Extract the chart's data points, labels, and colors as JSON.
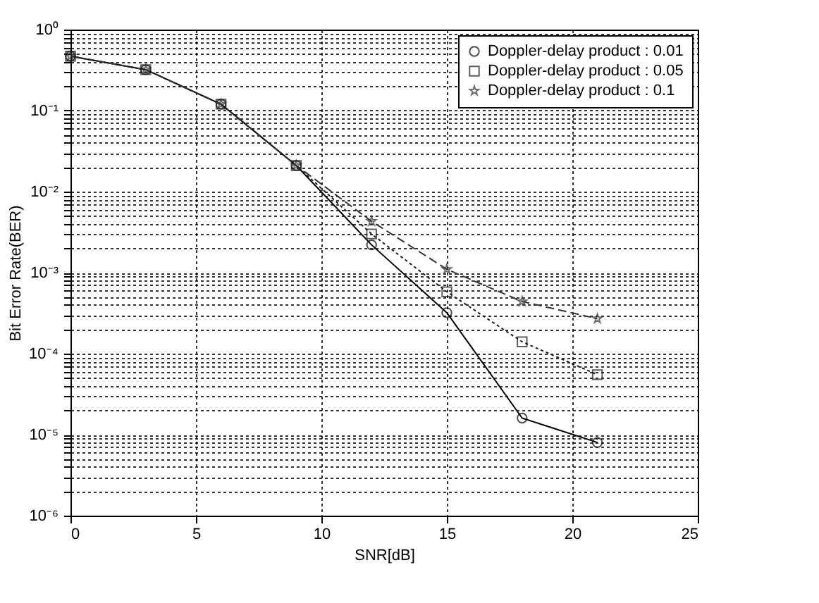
{
  "chart_data": {
    "type": "line",
    "xlabel": "SNR[dB]",
    "ylabel": "Bit Error Rate(BER)",
    "x": [
      0,
      3,
      6,
      9,
      12,
      15,
      18,
      21
    ],
    "series": [
      {
        "name": "Doppler-delay product : 0.01",
        "color": "#000000",
        "marker": "circle",
        "line_style": "solid",
        "values": [
          0.47,
          0.32,
          0.12,
          0.021,
          0.0022,
          0.00032,
          1.6e-05,
          8e-06
        ]
      },
      {
        "name": "Doppler-delay product : 0.05",
        "color": "#1a1a1a",
        "marker": "square",
        "line_style": "dotted",
        "values": [
          0.47,
          0.32,
          0.12,
          0.021,
          0.003,
          0.00058,
          0.00014,
          5.5e-05
        ]
      },
      {
        "name": "Doppler-delay product : 0.1",
        "color": "#333333",
        "marker": "star",
        "line_style": "dashed",
        "values": [
          0.47,
          0.32,
          0.12,
          0.021,
          0.0043,
          0.0011,
          0.00044,
          0.00027
        ]
      }
    ],
    "log": "y",
    "grid": true,
    "legend": "top right",
    "xlim": [
      0,
      25
    ],
    "xticks": [
      0,
      5,
      10,
      15,
      20,
      25
    ],
    "ylim": [
      1e-06,
      1
    ],
    "yticks": [
      {
        "value": 1e-06,
        "label": "10⁻⁶"
      },
      {
        "value": 2e-06,
        "label": null
      },
      {
        "value": 3e-06,
        "label": null
      },
      {
        "value": 4e-06,
        "label": null
      },
      {
        "value": 5e-06,
        "label": null
      },
      {
        "value": 6e-06,
        "label": null
      },
      {
        "value": 7e-06,
        "label": null
      },
      {
        "value": 8e-06,
        "label": null
      },
      {
        "value": 9e-06,
        "label": null
      },
      {
        "value": 1e-05,
        "label": "10⁻⁵"
      },
      {
        "value": 2e-05,
        "label": null
      },
      {
        "value": 3e-05,
        "label": null
      },
      {
        "value": 4e-05,
        "label": null
      },
      {
        "value": 5e-05,
        "label": null
      },
      {
        "value": 6e-05,
        "label": null
      },
      {
        "value": 7e-05,
        "label": null
      },
      {
        "value": 8e-05,
        "label": null
      },
      {
        "value": 9e-05,
        "label": null
      },
      {
        "value": 0.0001,
        "label": "10⁻⁴"
      },
      {
        "value": 0.0002,
        "label": null
      },
      {
        "value": 0.0003,
        "label": null
      },
      {
        "value": 0.0004,
        "label": null
      },
      {
        "value": 0.0005,
        "label": null
      },
      {
        "value": 0.0006,
        "label": null
      },
      {
        "value": 0.0007,
        "label": null
      },
      {
        "value": 0.0008,
        "label": null
      },
      {
        "value": 0.0009,
        "label": null
      },
      {
        "value": 0.001,
        "label": "10⁻³"
      },
      {
        "value": 0.002,
        "label": null
      },
      {
        "value": 0.003,
        "label": null
      },
      {
        "value": 0.004,
        "label": null
      },
      {
        "value": 0.005,
        "label": null
      },
      {
        "value": 0.006,
        "label": null
      },
      {
        "value": 0.007,
        "label": null
      },
      {
        "value": 0.008,
        "label": null
      },
      {
        "value": 0.009,
        "label": null
      },
      {
        "value": 0.01,
        "label": "10⁻²"
      },
      {
        "value": 0.02,
        "label": null
      },
      {
        "value": 0.03,
        "label": null
      },
      {
        "value": 0.04,
        "label": null
      },
      {
        "value": 0.05,
        "label": null
      },
      {
        "value": 0.06,
        "label": null
      },
      {
        "value": 0.07,
        "label": null
      },
      {
        "value": 0.08,
        "label": null
      },
      {
        "value": 0.09,
        "label": null
      },
      {
        "value": 0.1,
        "label": "10⁻¹"
      },
      {
        "value": 0.2,
        "label": null
      },
      {
        "value": 0.3,
        "label": null
      },
      {
        "value": 0.4,
        "label": null
      },
      {
        "value": 0.5,
        "label": null
      },
      {
        "value": 0.6,
        "label": null
      },
      {
        "value": 0.7,
        "label": null
      },
      {
        "value": 0.8,
        "label": null
      },
      {
        "value": 0.9,
        "label": null
      },
      {
        "value": 1,
        "label": "10⁰"
      }
    ]
  }
}
